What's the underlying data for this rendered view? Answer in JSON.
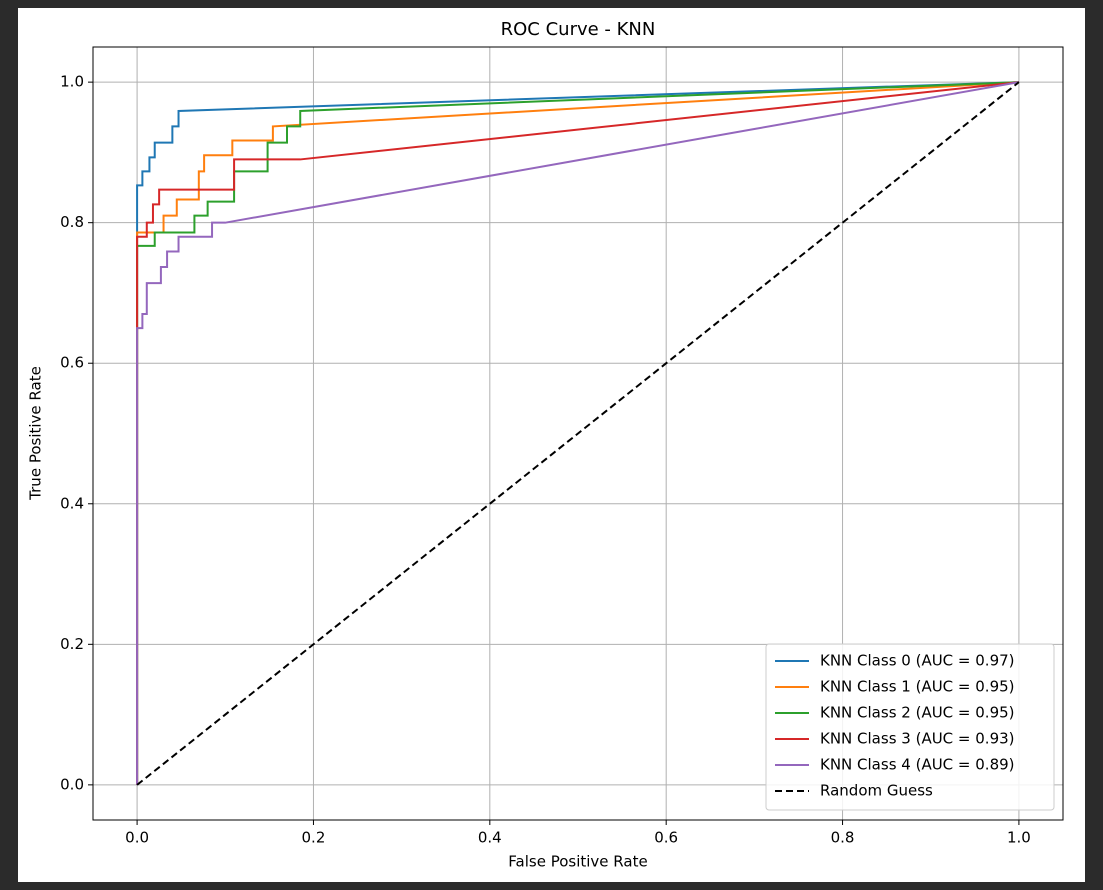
{
  "chart_data": {
    "type": "line",
    "title": "ROC Curve - KNN",
    "x_label": "False Positive Rate",
    "y_label": "True Positive Rate",
    "xlim": [
      -0.05,
      1.05
    ],
    "ylim": [
      -0.05,
      1.05
    ],
    "xticks": [
      {
        "value": 0,
        "label": "0.0"
      },
      0.2,
      0.4,
      0.6,
      0.8,
      {
        "value": 1,
        "label": "1.0"
      }
    ],
    "yticks": [
      {
        "value": 0,
        "label": "0.0"
      },
      0.2,
      0.4,
      0.6,
      0.8,
      {
        "value": 1,
        "label": "1.0"
      }
    ],
    "grid": true,
    "legend": "lower right",
    "series": [
      {
        "name": "KNN Class 0 (AUC = 0.97)",
        "color": "#1f77b4",
        "x": [
          0,
          0,
          0.006,
          0.006,
          0.014,
          0.014,
          0.02,
          0.02,
          0.04,
          0.04,
          0.047,
          0.047,
          1
        ],
        "values": [
          0,
          0.853,
          0.853,
          0.873,
          0.873,
          0.893,
          0.893,
          0.914,
          0.914,
          0.937,
          0.937,
          0.959,
          1
        ]
      },
      {
        "name": "KNN Class 1 (AUC = 0.95)",
        "color": "#ff7f0e",
        "x": [
          0,
          0,
          0.03,
          0.03,
          0.045,
          0.045,
          0.07,
          0.07,
          0.076,
          0.076,
          0.108,
          0.108,
          0.154,
          0.154,
          1
        ],
        "values": [
          0,
          0.786,
          0.786,
          0.81,
          0.81,
          0.833,
          0.833,
          0.873,
          0.873,
          0.896,
          0.896,
          0.917,
          0.917,
          0.937,
          1
        ]
      },
      {
        "name": "KNN Class 2 (AUC = 0.95)",
        "color": "#2ca02c",
        "x": [
          0,
          0,
          0.02,
          0.02,
          0.065,
          0.065,
          0.08,
          0.08,
          0.11,
          0.11,
          0.148,
          0.148,
          0.17,
          0.17,
          0.185,
          0.185,
          1
        ],
        "values": [
          0,
          0.767,
          0.767,
          0.786,
          0.786,
          0.81,
          0.81,
          0.83,
          0.83,
          0.873,
          0.873,
          0.914,
          0.914,
          0.937,
          0.937,
          0.959,
          1
        ]
      },
      {
        "name": "KNN Class 3 (AUC = 0.93)",
        "color": "#d62728",
        "x": [
          0,
          0,
          0.011,
          0.011,
          0.018,
          0.018,
          0.025,
          0.025,
          0.11,
          0.11,
          0.185,
          1
        ],
        "values": [
          0,
          0.78,
          0.78,
          0.8,
          0.8,
          0.826,
          0.826,
          0.847,
          0.847,
          0.89,
          0.89,
          1
        ]
      },
      {
        "name": "KNN Class 4 (AUC = 0.89)",
        "color": "#9467bd",
        "x": [
          0,
          0,
          0.006,
          0.006,
          0.011,
          0.011,
          0.027,
          0.027,
          0.034,
          0.034,
          0.047,
          0.047,
          0.085,
          0.085,
          0.1,
          1
        ],
        "values": [
          0,
          0.65,
          0.65,
          0.67,
          0.67,
          0.714,
          0.714,
          0.737,
          0.737,
          0.759,
          0.759,
          0.78,
          0.78,
          0.8,
          0.8,
          1
        ]
      },
      {
        "name": "Random Guess",
        "color": "#000000",
        "dashed": true,
        "x": [
          0,
          1
        ],
        "values": [
          0,
          1
        ]
      }
    ]
  }
}
